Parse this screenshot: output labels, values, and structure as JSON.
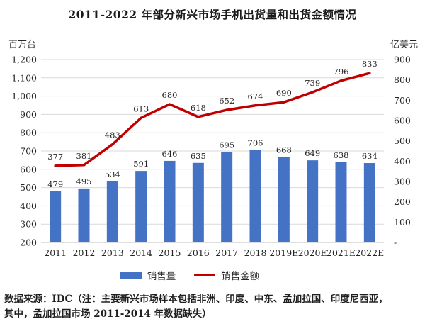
{
  "title": "2011-2022 年部分新兴市场手机出货量和出货金额情况",
  "chart_data": {
    "type": "bar",
    "subtype": "bar-line-combo",
    "title": "2011-2022 年部分新兴市场手机出货量和出货金额情况",
    "categories": [
      "2011",
      "2012",
      "2013",
      "2014",
      "2015",
      "2016",
      "2017",
      "2018",
      "2019E",
      "2020E",
      "2021E",
      "2022E"
    ],
    "series": [
      {
        "name": "销售量",
        "type": "bar",
        "axis": "left",
        "values": [
          479,
          495,
          534,
          591,
          646,
          635,
          695,
          706,
          668,
          649,
          638,
          634
        ]
      },
      {
        "name": "销售金额",
        "type": "line",
        "axis": "right",
        "values": [
          377,
          381,
          483,
          613,
          680,
          618,
          652,
          674,
          690,
          739,
          796,
          833
        ]
      }
    ],
    "left_axis": {
      "label": "百万台",
      "min": 200,
      "max": 1200,
      "step": 100
    },
    "right_axis": {
      "label": "亿美元",
      "min": 0,
      "max": 900,
      "step": 100,
      "zero_tick_label": "-"
    },
    "xlabel": "",
    "grid": true,
    "legend_position": "bottom",
    "data_labels": true
  },
  "legend": {
    "volume_label": "销售量",
    "amount_label": "销售金额"
  },
  "footer": {
    "line1": "数据来源：IDC（注：主要新兴市场样本包括非洲、印度、中东、孟加拉国、印度尼西亚，",
    "line2": "其中，孟加拉国市场 2011-2014 年数据缺失）"
  },
  "colors": {
    "bar": "#4472C4",
    "line": "#C00000",
    "grid": "#D9D9D9",
    "axis": "#BFBFBF",
    "text": "#262626",
    "title_text": "#1a1a1a"
  }
}
